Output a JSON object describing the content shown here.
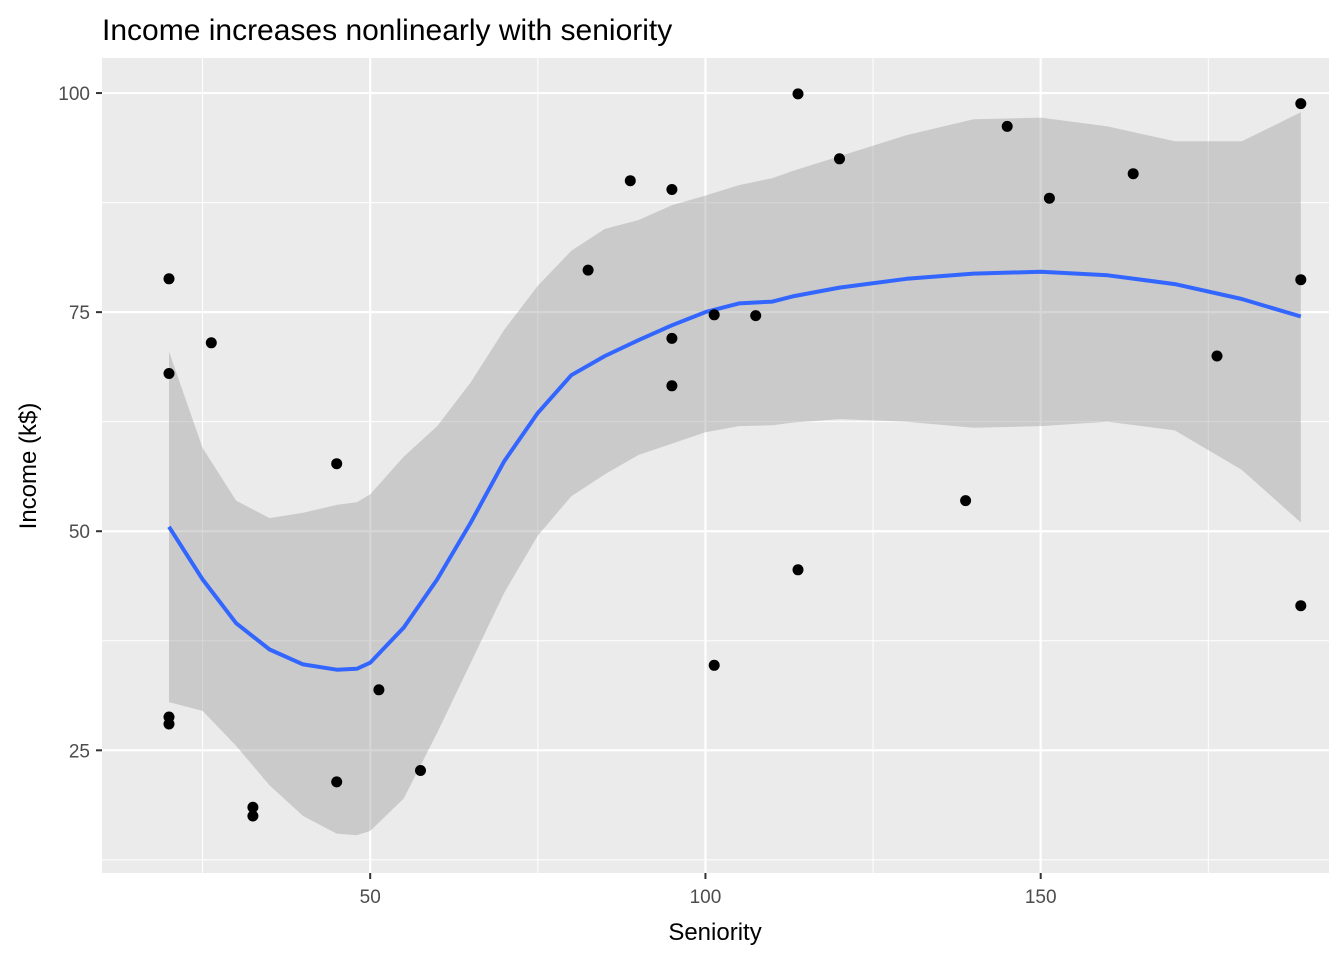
{
  "chart_data": {
    "type": "scatter",
    "title": "Income increases nonlinearly with seniority",
    "xlabel": "Seniority",
    "ylabel": "Income (k$)",
    "xlim": [
      10,
      193
    ],
    "ylim": [
      11,
      104
    ],
    "x_ticks": [
      50,
      100,
      150
    ],
    "x_tick_labels": [
      "50",
      "100",
      "150"
    ],
    "y_ticks": [
      25,
      50,
      75,
      100
    ],
    "y_tick_labels": [
      "25",
      "50",
      "75",
      "100"
    ],
    "grid": true,
    "legend": "none",
    "series": [
      {
        "type": "scatter",
        "points": [
          [
            20,
            78.8
          ],
          [
            20,
            68
          ],
          [
            20,
            28.8
          ],
          [
            20,
            28
          ],
          [
            26.3,
            71.5
          ],
          [
            32.5,
            18.5
          ],
          [
            32.5,
            17.5
          ],
          [
            45,
            57.7
          ],
          [
            45,
            21.4
          ],
          [
            51.3,
            31.9
          ],
          [
            57.5,
            22.7
          ],
          [
            82.5,
            79.8
          ],
          [
            88.8,
            90
          ],
          [
            95,
            89
          ],
          [
            95,
            72
          ],
          [
            95,
            66.6
          ],
          [
            101.3,
            74.7
          ],
          [
            101.3,
            34.7
          ],
          [
            107.5,
            74.6
          ],
          [
            113.8,
            99.9
          ],
          [
            113.8,
            45.6
          ],
          [
            120,
            92.5
          ],
          [
            138.8,
            53.5
          ],
          [
            145,
            96.2
          ],
          [
            151.3,
            88
          ],
          [
            163.8,
            90.8
          ],
          [
            176.3,
            70
          ],
          [
            188.8,
            98.8
          ],
          [
            188.8,
            78.7
          ],
          [
            188.8,
            41.5
          ]
        ],
        "color": "#000000"
      },
      {
        "type": "smooth",
        "method": "loess",
        "x": [
          20,
          25,
          30,
          35,
          40,
          45,
          48,
          50,
          55,
          60,
          65,
          70,
          75,
          80,
          85,
          90,
          95,
          100,
          105,
          110,
          113,
          120,
          130,
          140,
          150,
          160,
          170,
          180,
          188.8
        ],
        "y": [
          50.5,
          44.5,
          39.5,
          36.5,
          34.8,
          34.2,
          34.3,
          35,
          39,
          44.5,
          51,
          58,
          63.5,
          67.8,
          70,
          71.8,
          73.5,
          75,
          76,
          76.2,
          76.8,
          77.8,
          78.8,
          79.4,
          79.6,
          79.2,
          78.2,
          76.5,
          74.5
        ],
        "ymin": [
          30.5,
          29.5,
          25.5,
          21,
          17.5,
          15.5,
          15.3,
          15.8,
          19.5,
          27,
          35,
          43,
          49.5,
          54,
          56.5,
          58.7,
          60,
          61.3,
          62,
          62.1,
          62.4,
          62.8,
          62.5,
          61.8,
          62,
          62.5,
          61.5,
          57,
          51
        ],
        "ymax": [
          70.5,
          59.5,
          53.5,
          51.5,
          52.1,
          53,
          53.3,
          54.2,
          58.5,
          62,
          67,
          73,
          78,
          82,
          84.5,
          85.5,
          87.2,
          88.3,
          89.5,
          90.3,
          91.1,
          92.8,
          95.2,
          97,
          97.2,
          96.2,
          94.5,
          94.5,
          97.8
        ],
        "line_color": "#3366FF",
        "band_color": "#999999"
      }
    ]
  }
}
